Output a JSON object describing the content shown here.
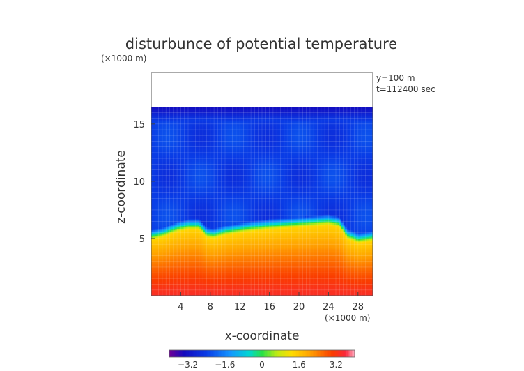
{
  "chart_data": {
    "type": "heatmap",
    "title": "disturbunce of potential temperature",
    "unit_label": "(×1000 m)",
    "xlabel": "x-coordinate",
    "ylabel": "z-coordinate",
    "x_unit_label": "(×1000 m)",
    "info": [
      "y=100 m",
      "t=112400 sec"
    ],
    "xlim": [
      0,
      30
    ],
    "ylim": [
      0,
      19.5
    ],
    "xticks": [
      4,
      8,
      12,
      16,
      20,
      24,
      28
    ],
    "yticks": [
      5,
      10,
      15
    ],
    "domain_top": 16.5,
    "colorbar": {
      "range": [
        -4.0,
        4.0
      ],
      "ticks": [
        -3.2,
        -1.6,
        0,
        1.6,
        3.2
      ],
      "tick_labels": [
        "−3.2",
        "−1.6",
        "0",
        "1.6",
        "3.2"
      ]
    },
    "interface_z": [
      [
        0,
        4.9
      ],
      [
        1.5,
        5.1
      ],
      [
        3.5,
        5.6
      ],
      [
        5,
        5.8
      ],
      [
        6.5,
        5.8
      ],
      [
        7.5,
        5.1
      ],
      [
        8.5,
        5.0
      ],
      [
        10,
        5.3
      ],
      [
        13,
        5.6
      ],
      [
        16,
        5.8
      ],
      [
        18,
        5.9
      ],
      [
        20,
        6.0
      ],
      [
        22,
        6.1
      ],
      [
        24,
        6.2
      ],
      [
        25.5,
        6.0
      ],
      [
        26.5,
        5.0
      ],
      [
        28,
        4.6
      ],
      [
        30,
        4.8
      ]
    ],
    "surface_value": 3.4,
    "interface_value": 1.4,
    "upper_value": -2.4,
    "top_value": -3.3
  }
}
